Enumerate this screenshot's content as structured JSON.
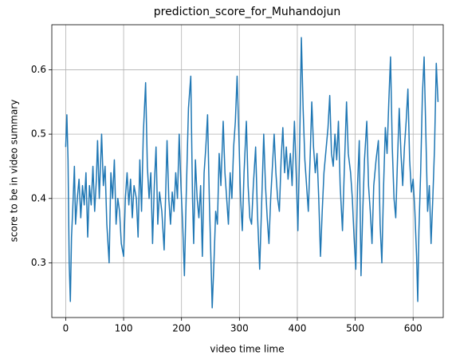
{
  "chart_data": {
    "type": "line",
    "title": "prediction_score_for_Muhandojun",
    "x_label": "video time lime",
    "y_label": "score to be in video summary",
    "grid": true,
    "xlim": [
      -24,
      652
    ],
    "ylim": [
      0.215,
      0.67
    ],
    "xticks": [
      0,
      100,
      200,
      300,
      400,
      500,
      600
    ],
    "yticks": [
      0.3,
      0.4,
      0.5,
      0.6
    ],
    "x": [
      0,
      2,
      4,
      6,
      8,
      10,
      12,
      15,
      17,
      20,
      23,
      26,
      29,
      32,
      35,
      38,
      41,
      44,
      47,
      50,
      53,
      55,
      58,
      62,
      65,
      68,
      71,
      75,
      78,
      81,
      84,
      87,
      90,
      93,
      96,
      100,
      103,
      106,
      109,
      112,
      115,
      118,
      122,
      125,
      128,
      131,
      134,
      138,
      141,
      144,
      147,
      150,
      153,
      156,
      159,
      162,
      166,
      170,
      173,
      175,
      178,
      181,
      184,
      187,
      190,
      193,
      196,
      199,
      202,
      205,
      208,
      212,
      216,
      219,
      221,
      224,
      227,
      230,
      233,
      236,
      239,
      242,
      245,
      248,
      251,
      253,
      256,
      259,
      262,
      265,
      268,
      272,
      275,
      278,
      281,
      284,
      287,
      290,
      293,
      296,
      299,
      302,
      305,
      308,
      312,
      315,
      318,
      321,
      324,
      328,
      331,
      335,
      338,
      342,
      345,
      348,
      351,
      354,
      357,
      360,
      363,
      366,
      369,
      372,
      375,
      378,
      381,
      384,
      388,
      391,
      395,
      398,
      401,
      404,
      407,
      410,
      413,
      416,
      419,
      422,
      425,
      428,
      431,
      434,
      437,
      440,
      443,
      446,
      450,
      453,
      456,
      459,
      462,
      465,
      468,
      471,
      474,
      478,
      481,
      485,
      488,
      492,
      495,
      498,
      501,
      504,
      507,
      510,
      513,
      516,
      520,
      523,
      526,
      529,
      532,
      536,
      540,
      543,
      546,
      549,
      552,
      555,
      558,
      561,
      564,
      567,
      570,
      573,
      576,
      579,
      582,
      585,
      588,
      591,
      594,
      597,
      600,
      603,
      606,
      608,
      610,
      613,
      616,
      619,
      622,
      625,
      628,
      631,
      634,
      637,
      640,
      643
    ],
    "series": [
      {
        "color": "#1f77b4",
        "values": [
          0.48,
          0.53,
          0.46,
          0.3,
          0.24,
          0.34,
          0.38,
          0.45,
          0.36,
          0.4,
          0.43,
          0.37,
          0.42,
          0.39,
          0.44,
          0.34,
          0.42,
          0.39,
          0.45,
          0.38,
          0.43,
          0.49,
          0.4,
          0.5,
          0.42,
          0.45,
          0.36,
          0.3,
          0.44,
          0.4,
          0.46,
          0.36,
          0.4,
          0.38,
          0.33,
          0.31,
          0.4,
          0.44,
          0.39,
          0.43,
          0.37,
          0.42,
          0.4,
          0.34,
          0.46,
          0.38,
          0.5,
          0.58,
          0.45,
          0.4,
          0.44,
          0.33,
          0.42,
          0.48,
          0.36,
          0.41,
          0.38,
          0.32,
          0.42,
          0.49,
          0.4,
          0.36,
          0.41,
          0.38,
          0.44,
          0.4,
          0.5,
          0.42,
          0.36,
          0.28,
          0.4,
          0.54,
          0.59,
          0.4,
          0.33,
          0.46,
          0.4,
          0.37,
          0.42,
          0.31,
          0.44,
          0.48,
          0.53,
          0.4,
          0.3,
          0.23,
          0.3,
          0.38,
          0.36,
          0.47,
          0.42,
          0.52,
          0.44,
          0.4,
          0.36,
          0.44,
          0.4,
          0.48,
          0.52,
          0.59,
          0.5,
          0.4,
          0.35,
          0.44,
          0.52,
          0.42,
          0.37,
          0.36,
          0.42,
          0.48,
          0.38,
          0.29,
          0.38,
          0.5,
          0.42,
          0.37,
          0.33,
          0.4,
          0.45,
          0.5,
          0.44,
          0.4,
          0.38,
          0.46,
          0.51,
          0.44,
          0.48,
          0.43,
          0.47,
          0.42,
          0.52,
          0.44,
          0.35,
          0.48,
          0.65,
          0.54,
          0.46,
          0.42,
          0.38,
          0.46,
          0.55,
          0.48,
          0.44,
          0.47,
          0.4,
          0.31,
          0.38,
          0.44,
          0.48,
          0.51,
          0.56,
          0.47,
          0.45,
          0.5,
          0.46,
          0.52,
          0.42,
          0.35,
          0.44,
          0.55,
          0.47,
          0.44,
          0.4,
          0.34,
          0.29,
          0.42,
          0.49,
          0.28,
          0.38,
          0.46,
          0.52,
          0.42,
          0.38,
          0.33,
          0.42,
          0.46,
          0.49,
          0.36,
          0.3,
          0.42,
          0.51,
          0.47,
          0.55,
          0.62,
          0.48,
          0.4,
          0.37,
          0.46,
          0.54,
          0.47,
          0.42,
          0.48,
          0.52,
          0.57,
          0.46,
          0.41,
          0.43,
          0.38,
          0.31,
          0.24,
          0.35,
          0.44,
          0.56,
          0.62,
          0.5,
          0.38,
          0.42,
          0.33,
          0.4,
          0.48,
          0.61,
          0.55
        ]
      }
    ]
  }
}
